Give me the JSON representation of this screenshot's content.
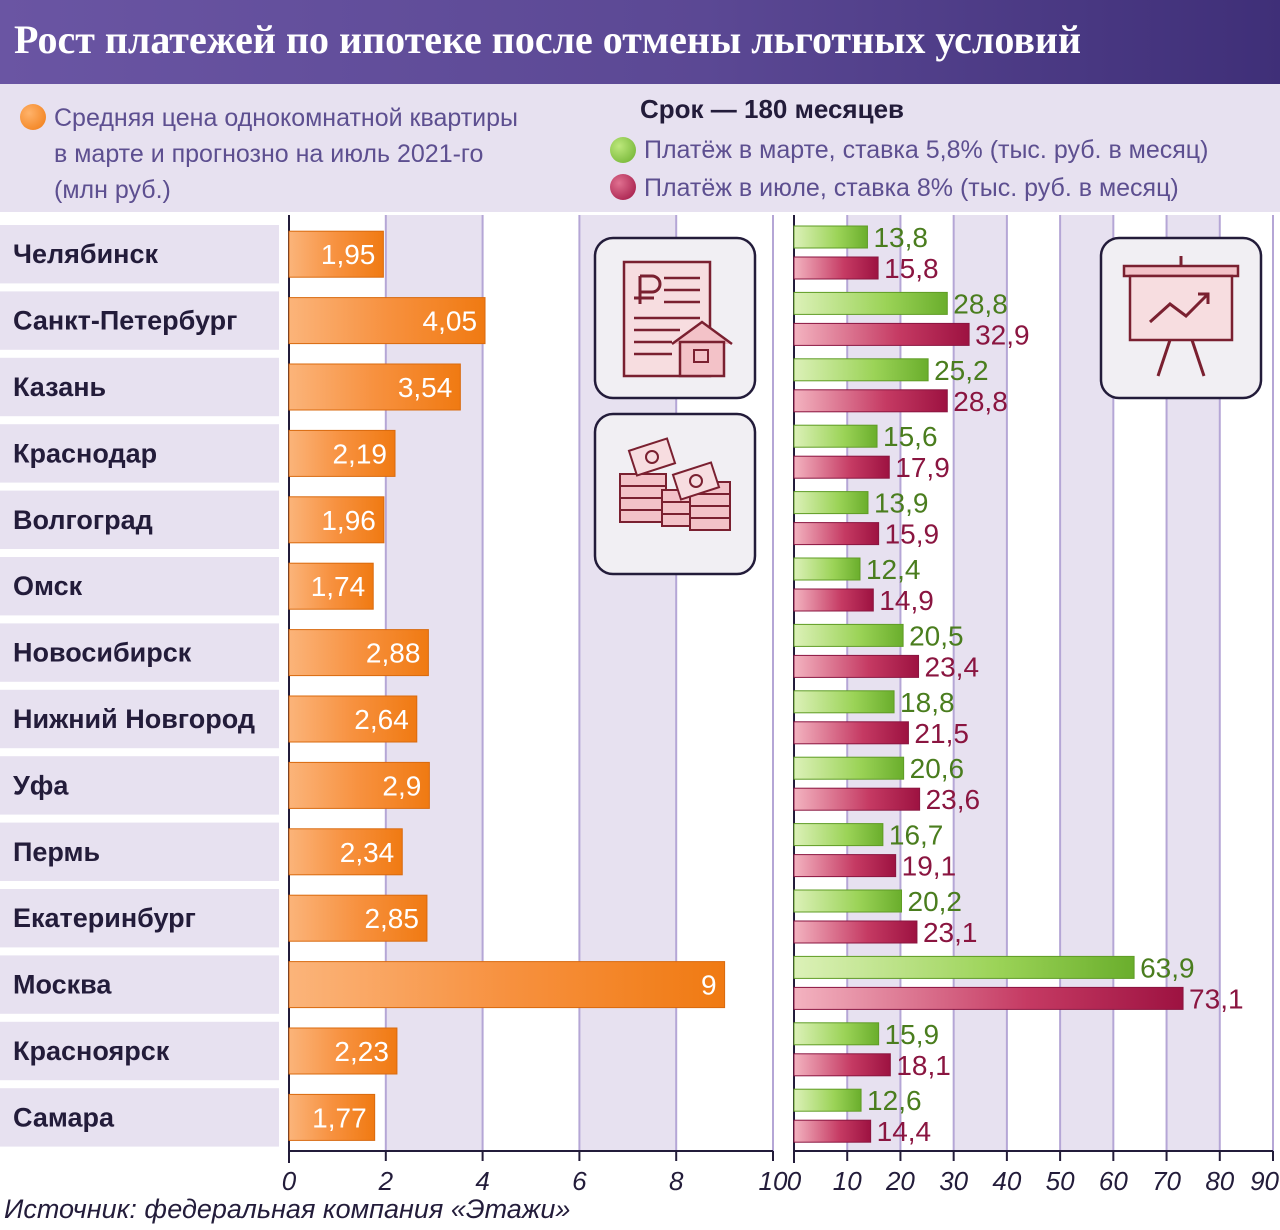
{
  "title": "Рост платежей по ипотеке после отмены льготных условий",
  "legend": {
    "price": [
      "Средняя цена однокомнатной квартиры",
      "в марте и прогнозно на июль 2021-го",
      "(млн руб.)"
    ],
    "term": "Срок — 180 месяцев",
    "march": "Платёж в марте, ставка 5,8% (тыс. руб. в месяц)",
    "july": "Платёж в июле, ставка 8% (тыс. руб. в месяц)"
  },
  "source": "Источник: федеральная компания «Этажи»",
  "colors": {
    "orange": "#f58220",
    "green": "#7cbf35",
    "crimson": "#a01848",
    "green_text": "#4a7d1e",
    "crimson_text": "#8a1540",
    "band": "#e7e1f0",
    "grid": "#b5a6d6",
    "header": "#5b4894"
  },
  "icons": [
    "document-ruble-house-icon",
    "money-stacks-icon",
    "presentation-chart-icon"
  ],
  "chart_data": [
    {
      "type": "bar",
      "orientation": "horizontal",
      "series_name": "Средняя цена однокомнатной квартиры (млн руб.)",
      "categories": [
        "Челябинск",
        "Санкт-Петербург",
        "Казань",
        "Краснодар",
        "Волгоград",
        "Омск",
        "Новосибирск",
        "Нижний Новгород",
        "Уфа",
        "Пермь",
        "Екатеринбург",
        "Москва",
        "Красноярск",
        "Самара"
      ],
      "values": [
        1.95,
        4.05,
        3.54,
        2.19,
        1.96,
        1.74,
        2.88,
        2.64,
        2.9,
        2.34,
        2.85,
        9,
        2.23,
        1.77
      ],
      "labels": [
        "1,95",
        "4,05",
        "3,54",
        "2,19",
        "1,96",
        "1,74",
        "2,88",
        "2,64",
        "2,9",
        "2,34",
        "2,85",
        "9",
        "2,23",
        "1,77"
      ],
      "xlim": [
        0,
        10
      ],
      "ticks": [
        "0",
        "2",
        "4",
        "6",
        "8",
        "10"
      ]
    },
    {
      "type": "bar",
      "orientation": "horizontal",
      "categories": [
        "Челябинск",
        "Санкт-Петербург",
        "Казань",
        "Краснодар",
        "Волгоград",
        "Омск",
        "Новосибирск",
        "Нижний Новгород",
        "Уфа",
        "Пермь",
        "Екатеринбург",
        "Москва",
        "Красноярск",
        "Самара"
      ],
      "series": [
        {
          "name": "Платёж в марте, ставка 5,8%",
          "values": [
            13.8,
            28.8,
            25.2,
            15.6,
            13.9,
            12.4,
            20.5,
            18.8,
            20.6,
            16.7,
            20.2,
            63.9,
            15.9,
            12.6
          ],
          "labels": [
            "13,8",
            "28,8",
            "25,2",
            "15,6",
            "13,9",
            "12,4",
            "20,5",
            "18,8",
            "20,6",
            "16,7",
            "20,2",
            "63,9",
            "15,9",
            "12,6"
          ]
        },
        {
          "name": "Платёж в июле, ставка 8%",
          "values": [
            15.8,
            32.9,
            28.8,
            17.9,
            15.9,
            14.9,
            23.4,
            21.5,
            23.6,
            19.1,
            23.1,
            73.1,
            18.1,
            14.4
          ],
          "labels": [
            "15,8",
            "32,9",
            "28,8",
            "17,9",
            "15,9",
            "14,9",
            "23,4",
            "21,5",
            "23,6",
            "19,1",
            "23,1",
            "73,1",
            "18,1",
            "14,4"
          ]
        }
      ],
      "xlim": [
        0,
        90
      ],
      "ticks": [
        "0",
        "10",
        "20",
        "30",
        "40",
        "50",
        "60",
        "70",
        "80",
        "90"
      ]
    }
  ]
}
